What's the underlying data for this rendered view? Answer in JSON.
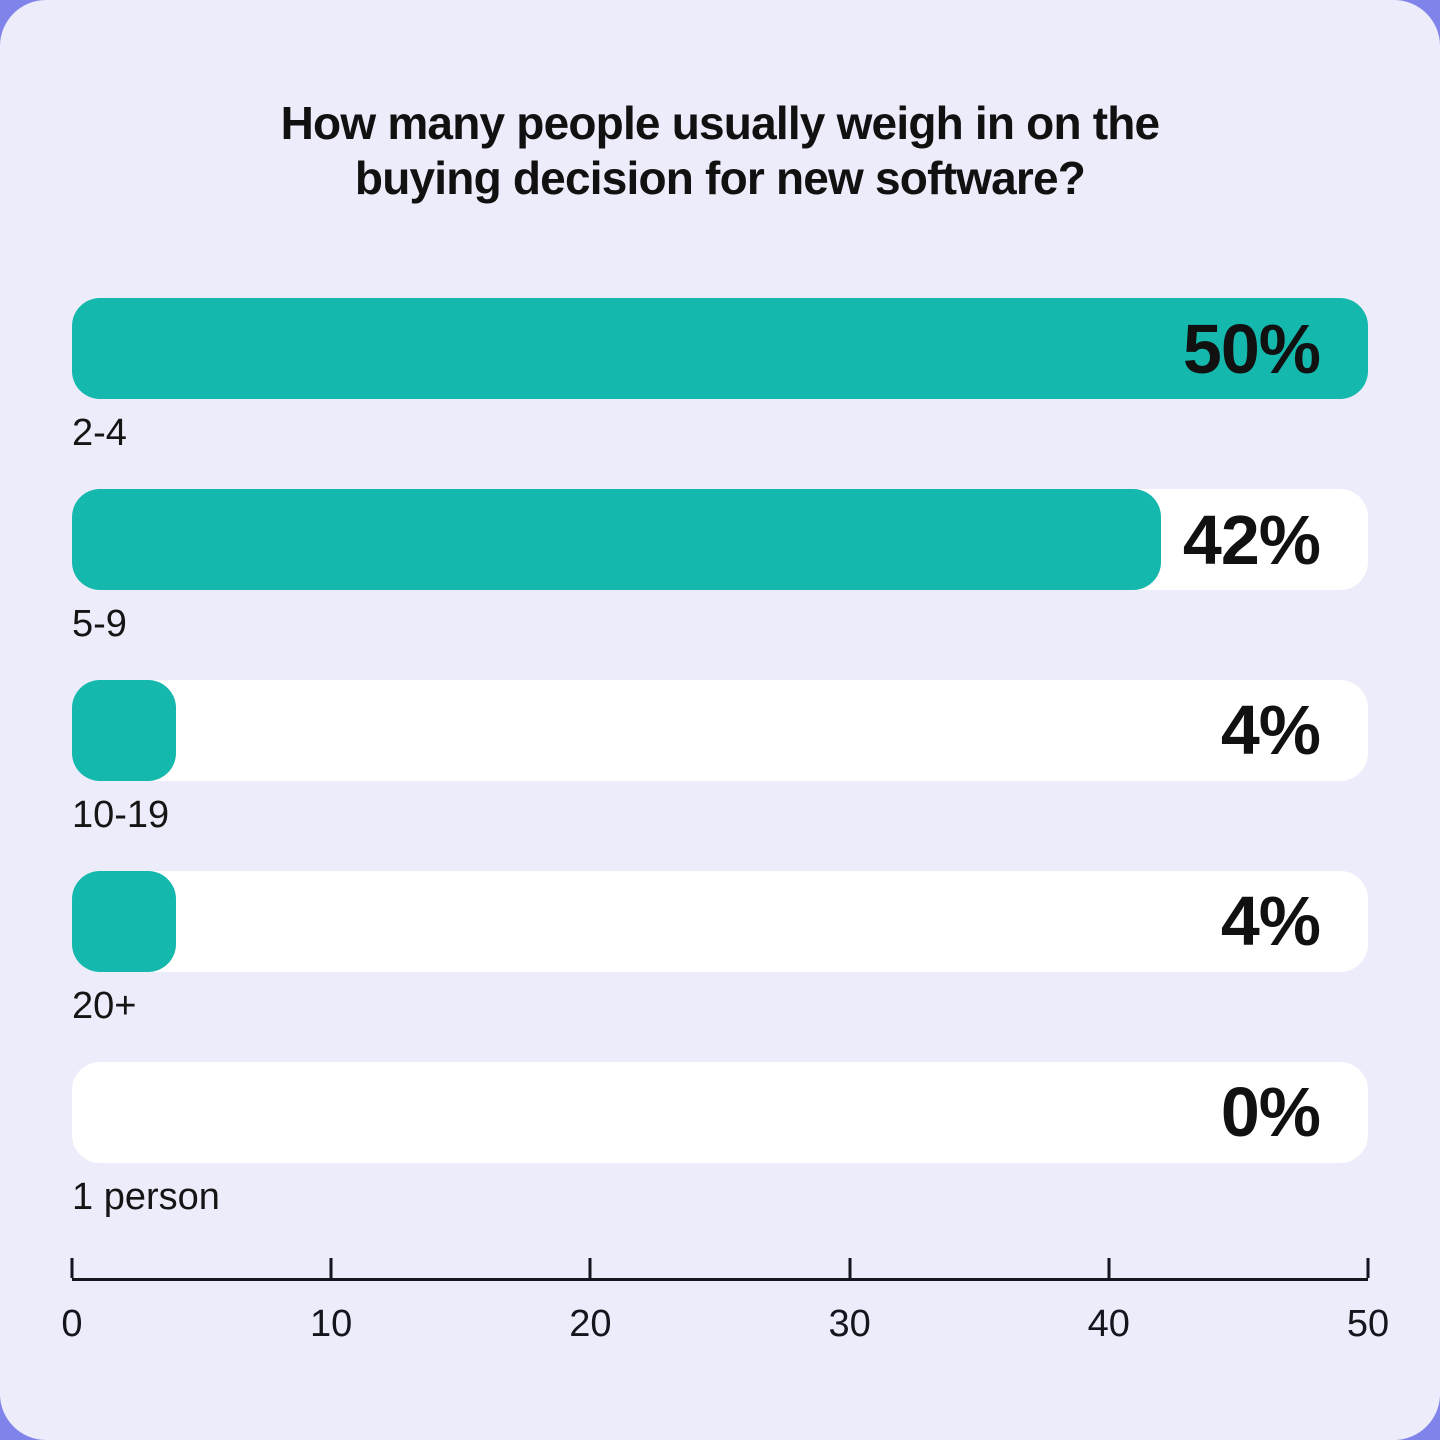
{
  "page": {
    "background_color": "#7F83EA",
    "card_color": "#EDECFA",
    "accent_color": "#14B8AC",
    "track_color": "#FFFFFF",
    "text_color": "#111111"
  },
  "title": "How many people usually weigh in on the buying decision for new software?",
  "chart_data": {
    "type": "bar",
    "orientation": "horizontal",
    "title": "How many people usually weigh in on the buying decision for new software?",
    "xlabel": "",
    "ylabel": "",
    "xlim": [
      0,
      50
    ],
    "x_ticks": [
      0,
      10,
      20,
      30,
      40,
      50
    ],
    "grid": false,
    "legend": false,
    "categories": [
      "2-4",
      "5-9",
      "10-19",
      "20+",
      "1 person"
    ],
    "values": [
      50,
      42,
      4,
      4,
      0
    ],
    "value_labels": [
      "50%",
      "42%",
      "4%",
      "4%",
      "0%"
    ],
    "bar_color": "#14B8AC",
    "track_color": "#FFFFFF"
  }
}
